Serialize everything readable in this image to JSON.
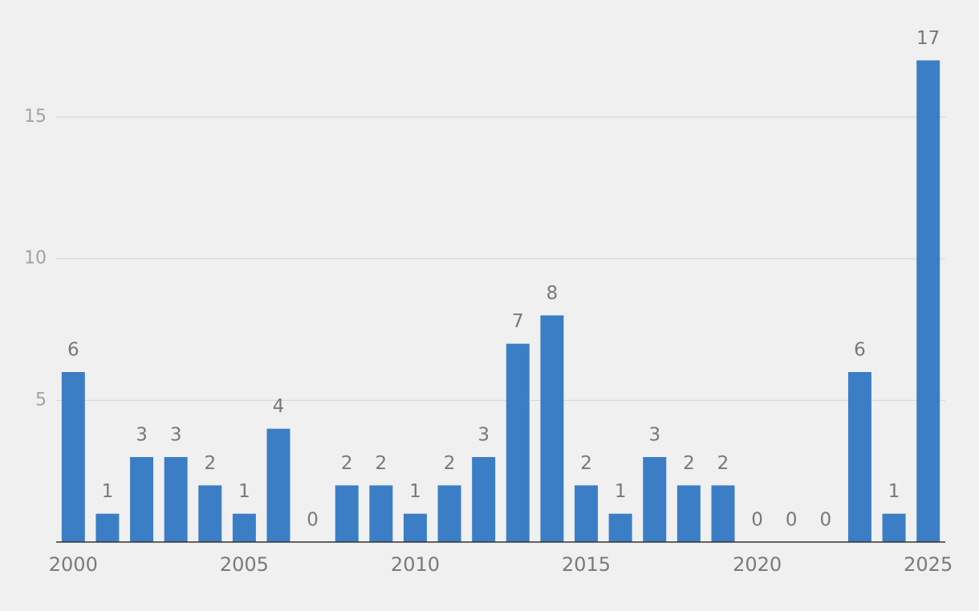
{
  "chart_data": {
    "type": "bar",
    "x": [
      2000,
      2001,
      2002,
      2003,
      2004,
      2005,
      2006,
      2007,
      2008,
      2009,
      2010,
      2011,
      2012,
      2013,
      2014,
      2015,
      2016,
      2017,
      2018,
      2019,
      2020,
      2021,
      2022,
      2023,
      2024,
      2025
    ],
    "values": [
      6,
      1,
      3,
      3,
      2,
      1,
      4,
      0,
      2,
      2,
      1,
      2,
      3,
      7,
      8,
      2,
      1,
      3,
      2,
      2,
      0,
      0,
      0,
      6,
      1,
      17
    ],
    "color": "#3b7ec6",
    "xlim": [
      1999.5,
      2025.5
    ],
    "xticks": [
      2000,
      2005,
      2010,
      2015,
      2020,
      2025
    ],
    "ylim": [
      0,
      18
    ],
    "yticks": [
      5,
      10,
      15
    ],
    "grid": true
  }
}
